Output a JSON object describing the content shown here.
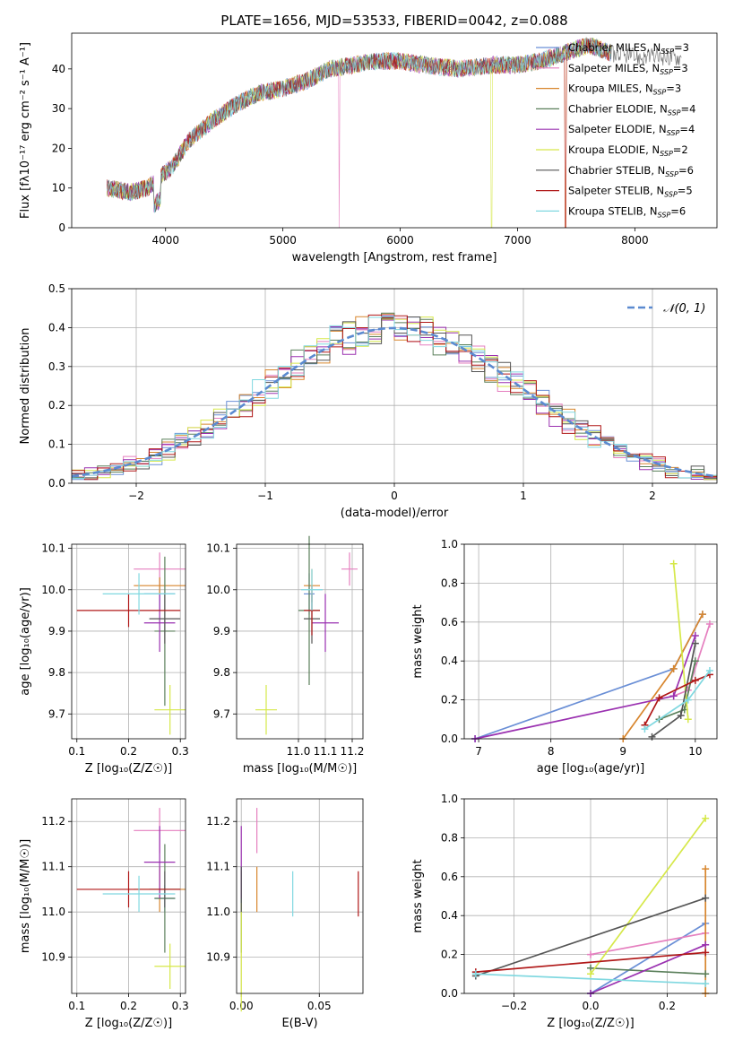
{
  "colors": {
    "Chabrier MILES": "#6a8fd6",
    "Salpeter MILES": "#e57fbf",
    "Kroupa MILES": "#d8862e",
    "Chabrier ELODIE": "#5a7f5a",
    "Salpeter ELODIE": "#9a30b0",
    "Kroupa ELODIE": "#d6e84a",
    "Chabrier STELIB": "#555555",
    "Salpeter STELIB": "#b01818",
    "Kroupa STELIB": "#80d8e0"
  },
  "chart_data": [
    {
      "type": "line",
      "title": "PLATE=1656, MJD=53533, FIBERID=0042, z=0.088",
      "xlabel": "wavelength [Angstrom, rest frame]",
      "ylabel": "Flux [fλ10⁻¹⁷ erg cm⁻² s⁻¹ A⁻¹]",
      "xlim": [
        3200,
        8700
      ],
      "ylim": [
        0,
        49
      ],
      "xticks": [
        "4000",
        "5000",
        "6000",
        "7000",
        "8000"
      ],
      "yticks": [
        "0",
        "10",
        "20",
        "30",
        "40"
      ],
      "grid": false,
      "legend_position": "top-right",
      "legend": [
        {
          "name": "Chabrier MILES",
          "nssp": "3"
        },
        {
          "name": "Salpeter MILES",
          "nssp": "3"
        },
        {
          "name": "Kroupa MILES",
          "nssp": "3"
        },
        {
          "name": "Chabrier ELODIE",
          "nssp": "4"
        },
        {
          "name": "Salpeter ELODIE",
          "nssp": "4"
        },
        {
          "name": "Kroupa ELODIE",
          "nssp": "2"
        },
        {
          "name": "Chabrier STELIB",
          "nssp": "6"
        },
        {
          "name": "Salpeter STELIB",
          "nssp": "5"
        },
        {
          "name": "Kroupa STELIB",
          "nssp": "6"
        }
      ],
      "continuum": [
        [
          3500,
          10
        ],
        [
          3700,
          9
        ],
        [
          3850,
          10
        ],
        [
          3950,
          13
        ],
        [
          4050,
          15
        ],
        [
          4200,
          22
        ],
        [
          4400,
          27
        ],
        [
          4600,
          31
        ],
        [
          4800,
          34
        ],
        [
          5000,
          35
        ],
        [
          5200,
          37
        ],
        [
          5400,
          40
        ],
        [
          5600,
          41
        ],
        [
          5800,
          42
        ],
        [
          6000,
          42
        ],
        [
          6200,
          41
        ],
        [
          6500,
          40
        ],
        [
          6800,
          41
        ],
        [
          7000,
          41
        ],
        [
          7200,
          42
        ],
        [
          7400,
          44
        ],
        [
          7600,
          46
        ],
        [
          7800,
          44
        ],
        [
          8000,
          43
        ],
        [
          8200,
          43
        ],
        [
          8400,
          43
        ]
      ],
      "model_cutoffs": [
        {
          "series": "Kroupa ELODIE",
          "x": 6780
        },
        {
          "series": "Salpeter STELIB",
          "x": 7410
        },
        {
          "series": "Kroupa MILES",
          "x": 7410
        },
        {
          "series": "Salpeter MILES",
          "x": 5480
        }
      ]
    },
    {
      "type": "line",
      "xlabel": "(data-model)/error",
      "ylabel": "Normed distribution",
      "xlim": [
        -2.5,
        2.5
      ],
      "ylim": [
        0,
        0.5
      ],
      "xticks": [
        "−2",
        "−1",
        "0",
        "1",
        "2"
      ],
      "yticks": [
        "0.0",
        "0.1",
        "0.2",
        "0.3",
        "0.4",
        "0.5"
      ],
      "grid": true,
      "legend_position": "top-right",
      "reference_label": "𝒩(0, 1)",
      "reference_color": "#5b8ad0",
      "bin_width": 0.1
    },
    {
      "type": "scatter",
      "xlabel": "Z [log₁₀(Z/Z☉)]",
      "ylabel": "age  [log₁₀(age/yr)]",
      "xlim": [
        0.09,
        0.31
      ],
      "ylim": [
        9.64,
        10.11
      ],
      "xticks": [
        "0.1",
        "0.2",
        "0.3"
      ],
      "yticks": [
        "9.7",
        "9.8",
        "9.9",
        "10.0",
        "10.1"
      ],
      "grid": true,
      "points": [
        {
          "series": "Chabrier MILES",
          "x": 0.26,
          "xerr": 0.03,
          "y": 9.99,
          "yerr": 0.04
        },
        {
          "series": "Salpeter MILES",
          "x": 0.26,
          "xerr": 0.05,
          "y": 10.05,
          "yerr": 0.04
        },
        {
          "series": "Kroupa MILES",
          "x": 0.26,
          "xerr": 0.05,
          "y": 10.01,
          "yerr": 0.02
        },
        {
          "series": "Chabrier ELODIE",
          "x": 0.27,
          "xerr": 0.02,
          "y": 9.9,
          "yerr": 0.18
        },
        {
          "series": "Salpeter ELODIE",
          "x": 0.26,
          "xerr": 0.03,
          "y": 9.92,
          "yerr": 0.07
        },
        {
          "series": "Kroupa ELODIE",
          "x": 0.28,
          "xerr": 0.03,
          "y": 9.71,
          "yerr": 0.06
        },
        {
          "series": "Chabrier STELIB",
          "x": 0.27,
          "xerr": 0.03,
          "y": 9.93,
          "yerr": 0.06
        },
        {
          "series": "Salpeter STELIB",
          "x": 0.2,
          "xerr": 0.1,
          "y": 9.95,
          "yerr": 0.04
        },
        {
          "series": "Kroupa STELIB",
          "x": 0.22,
          "xerr": 0.07,
          "y": 9.99,
          "yerr": 0.05
        }
      ]
    },
    {
      "type": "scatter",
      "xlabel": "mass [log₁₀(M/M☉)]",
      "ylabel": "",
      "xlim": [
        10.77,
        11.24
      ],
      "ylim": [
        9.64,
        10.11
      ],
      "xticks": [
        "11.0",
        "11.1",
        "11.2"
      ],
      "yticks": [
        "9.7",
        "9.8",
        "9.9",
        "10.0",
        "10.1"
      ],
      "grid": true,
      "points": [
        {
          "series": "Chabrier MILES",
          "x": 11.04,
          "xerr": 0.02,
          "y": 9.99,
          "yerr": 0.05
        },
        {
          "series": "Salpeter MILES",
          "x": 11.19,
          "xerr": 0.03,
          "y": 10.05,
          "yerr": 0.04
        },
        {
          "series": "Kroupa MILES",
          "x": 11.05,
          "xerr": 0.03,
          "y": 10.01,
          "yerr": 0.04
        },
        {
          "series": "Chabrier ELODIE",
          "x": 11.04,
          "xerr": 0.04,
          "y": 9.95,
          "yerr": 0.18
        },
        {
          "series": "Salpeter ELODIE",
          "x": 11.1,
          "xerr": 0.05,
          "y": 9.92,
          "yerr": 0.07
        },
        {
          "series": "Kroupa ELODIE",
          "x": 10.88,
          "xerr": 0.04,
          "y": 9.71,
          "yerr": 0.06
        },
        {
          "series": "Chabrier STELIB",
          "x": 11.05,
          "xerr": 0.03,
          "y": 9.93,
          "yerr": 0.06
        },
        {
          "series": "Salpeter STELIB",
          "x": 11.05,
          "xerr": 0.03,
          "y": 9.95,
          "yerr": 0.06
        },
        {
          "series": "Kroupa STELIB",
          "x": 11.05,
          "xerr": 0.04,
          "y": 10.0,
          "yerr": 0.05
        }
      ]
    },
    {
      "type": "line",
      "xlabel": "age  [log₁₀(age/yr)]",
      "ylabel": "mass weight",
      "xlim": [
        6.8,
        10.3
      ],
      "ylim": [
        0,
        1.0
      ],
      "xticks": [
        "7",
        "8",
        "9",
        "10"
      ],
      "yticks": [
        "0.0",
        "0.2",
        "0.4",
        "0.6",
        "0.8",
        "1.0"
      ],
      "grid": true,
      "series": [
        {
          "name": "Chabrier MILES",
          "x": [
            6.95,
            9.7,
            10.1
          ],
          "y": [
            0.0,
            0.36,
            0.64
          ]
        },
        {
          "name": "Salpeter MILES",
          "x": [
            9.7,
            9.9,
            10.2
          ],
          "y": [
            0.22,
            0.25,
            0.59
          ]
        },
        {
          "name": "Kroupa MILES",
          "x": [
            9.0,
            9.7,
            10.1
          ],
          "y": [
            0.0,
            0.36,
            0.64
          ]
        },
        {
          "name": "Chabrier ELODIE",
          "x": [
            9.5,
            9.85,
            10.0
          ],
          "y": [
            0.1,
            0.15,
            0.4
          ]
        },
        {
          "name": "Salpeter ELODIE",
          "x": [
            6.95,
            9.7,
            10.0
          ],
          "y": [
            0.0,
            0.22,
            0.53
          ]
        },
        {
          "name": "Kroupa ELODIE",
          "x": [
            9.7,
            9.9
          ],
          "y": [
            0.9,
            0.1
          ]
        },
        {
          "name": "Chabrier STELIB",
          "x": [
            9.4,
            9.8,
            10.0
          ],
          "y": [
            0.01,
            0.12,
            0.49
          ]
        },
        {
          "name": "Salpeter STELIB",
          "x": [
            9.3,
            9.5,
            10.0,
            10.2
          ],
          "y": [
            0.07,
            0.21,
            0.3,
            0.33
          ]
        },
        {
          "name": "Kroupa STELIB",
          "x": [
            9.3,
            9.9,
            10.2
          ],
          "y": [
            0.05,
            0.2,
            0.35
          ]
        }
      ]
    },
    {
      "type": "scatter",
      "xlabel": "Z [log₁₀(Z/Z☉)]",
      "ylabel": "mass [log₁₀(M/M☉)]",
      "xlim": [
        0.09,
        0.31
      ],
      "ylim": [
        10.82,
        11.25
      ],
      "xticks": [
        "0.1",
        "0.2",
        "0.3"
      ],
      "yticks": [
        "10.9",
        "11.0",
        "11.1",
        "11.2"
      ],
      "grid": true,
      "points": [
        {
          "series": "Chabrier MILES",
          "x": 0.27,
          "xerr": 0.02,
          "y": 11.03,
          "yerr": 0.03
        },
        {
          "series": "Salpeter MILES",
          "x": 0.26,
          "xerr": 0.05,
          "y": 11.18,
          "yerr": 0.05
        },
        {
          "series": "Kroupa MILES",
          "x": 0.26,
          "xerr": 0.05,
          "y": 11.05,
          "yerr": 0.05
        },
        {
          "series": "Chabrier ELODIE",
          "x": 0.27,
          "xerr": 0.02,
          "y": 11.03,
          "yerr": 0.12
        },
        {
          "series": "Salpeter ELODIE",
          "x": 0.26,
          "xerr": 0.03,
          "y": 11.11,
          "yerr": 0.08
        },
        {
          "series": "Kroupa ELODIE",
          "x": 0.28,
          "xerr": 0.03,
          "y": 10.88,
          "yerr": 0.05
        },
        {
          "series": "Chabrier STELIB",
          "x": 0.27,
          "xerr": 0.03,
          "y": 11.05,
          "yerr": 0.04
        },
        {
          "series": "Salpeter STELIB",
          "x": 0.2,
          "xerr": 0.1,
          "y": 11.05,
          "yerr": 0.04
        },
        {
          "series": "Kroupa STELIB",
          "x": 0.22,
          "xerr": 0.07,
          "y": 11.04,
          "yerr": 0.04
        }
      ]
    },
    {
      "type": "scatter",
      "xlabel": "E(B-V)",
      "ylabel": "",
      "xlim": [
        -0.003,
        0.078
      ],
      "ylim": [
        10.82,
        11.25
      ],
      "xticks": [
        "0.00",
        "0.05"
      ],
      "yticks": [
        "10.9",
        "11.0",
        "11.1",
        "11.2"
      ],
      "grid": true,
      "points": [
        {
          "series": "Chabrier MILES",
          "x": 0.0,
          "y": 11.05,
          "yerr": 0.05
        },
        {
          "series": "Salpeter MILES",
          "x": 0.01,
          "y": 11.18,
          "yerr": 0.05
        },
        {
          "series": "Kroupa MILES",
          "x": 0.01,
          "y": 11.05,
          "yerr": 0.05
        },
        {
          "series": "Chabrier ELODIE",
          "x": 0.0,
          "y": 11.0,
          "yerr": 0.09
        },
        {
          "series": "Salpeter ELODIE",
          "x": 0.0,
          "y": 11.11,
          "yerr": 0.08
        },
        {
          "series": "Kroupa ELODIE",
          "x": 0.0,
          "y": 10.9,
          "yerr": 0.12
        },
        {
          "series": "Chabrier STELIB",
          "x": 0.0,
          "y": 11.05,
          "yerr": 0.05
        },
        {
          "series": "Salpeter STELIB",
          "x": 0.075,
          "y": 11.04,
          "yerr": 0.05
        },
        {
          "series": "Kroupa STELIB",
          "x": 0.033,
          "y": 11.04,
          "yerr": 0.05
        }
      ]
    },
    {
      "type": "line",
      "xlabel": "Z [log₁₀(Z/Z☉)]",
      "ylabel": "mass weight",
      "xlim": [
        -0.33,
        0.33
      ],
      "ylim": [
        0,
        1.0
      ],
      "xticks": [
        "−0.2",
        "0.0",
        "0.2"
      ],
      "yticks": [
        "0.0",
        "0.2",
        "0.4",
        "0.6",
        "0.8",
        "1.0"
      ],
      "grid": true,
      "series": [
        {
          "name": "Chabrier MILES",
          "x": [
            0.0,
            0.3
          ],
          "y": [
            0.0,
            0.36
          ]
        },
        {
          "name": "Salpeter MILES",
          "x": [
            0.0,
            0.3
          ],
          "y": [
            0.2,
            0.31
          ]
        },
        {
          "name": "Kroupa MILES",
          "x": [
            0.3,
            0.3
          ],
          "y": [
            0.0,
            0.64
          ]
        },
        {
          "name": "Chabrier ELODIE",
          "x": [
            0.0,
            0.3
          ],
          "y": [
            0.13,
            0.1
          ]
        },
        {
          "name": "Salpeter ELODIE",
          "x": [
            0.0,
            0.3
          ],
          "y": [
            0.0,
            0.25
          ]
        },
        {
          "name": "Kroupa ELODIE",
          "x": [
            0.0,
            0.3
          ],
          "y": [
            0.1,
            0.9
          ]
        },
        {
          "name": "Chabrier STELIB",
          "x": [
            -0.3,
            0.3
          ],
          "y": [
            0.09,
            0.49
          ]
        },
        {
          "name": "Salpeter STELIB",
          "x": [
            -0.3,
            0.3
          ],
          "y": [
            0.11,
            0.21
          ]
        },
        {
          "name": "Kroupa STELIB",
          "x": [
            -0.3,
            0.3
          ],
          "y": [
            0.1,
            0.05
          ]
        }
      ]
    }
  ]
}
